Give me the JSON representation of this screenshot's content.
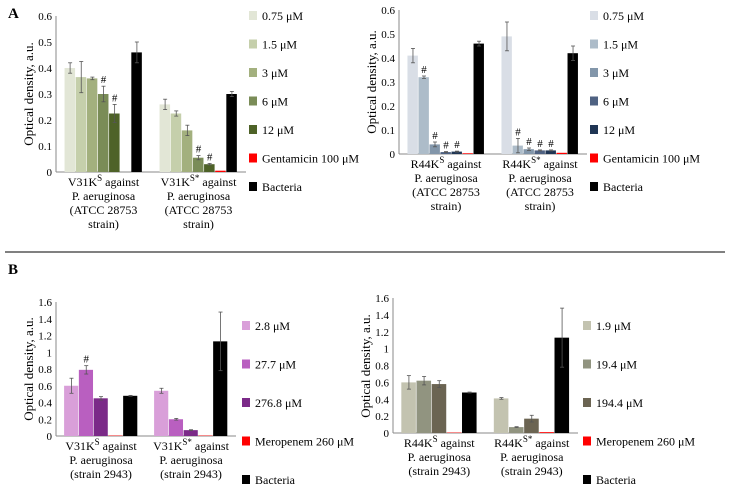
{
  "panels": [
    {
      "letter": "A"
    },
    {
      "letter": "B"
    }
  ],
  "chart_data": [
    {
      "type": "bar",
      "ylabel": "Optical density, a.u.",
      "ylim": [
        0,
        0.6
      ],
      "yticks": [
        "0",
        "0.1",
        "0.2",
        "0.3",
        "0.4",
        "0.5",
        "0.6"
      ],
      "categories": [
        {
          "label": "V31K",
          "sup": "S",
          "lines": [
            "against",
            "P. aeruginosa",
            "(ATCC 28753",
            "strain)"
          ]
        },
        {
          "label": "V31K",
          "sup": "S*",
          "lines": [
            "against",
            "P. aeruginosa",
            "(ATCC 28753",
            "strain)"
          ]
        }
      ],
      "series": [
        {
          "name": "0.75 μM",
          "color": "#e2e6d6",
          "values": [
            0.4,
            0.26
          ],
          "errors": [
            0.02,
            0.02
          ],
          "marks": [
            "",
            ""
          ]
        },
        {
          "name": "1.5 μM",
          "color": "#c5cfab",
          "values": [
            0.365,
            0.225
          ],
          "errors": [
            0.06,
            0.01
          ],
          "marks": [
            "",
            ""
          ]
        },
        {
          "name": "3 μM",
          "color": "#a3b07e",
          "values": [
            0.36,
            0.16
          ],
          "errors": [
            0.005,
            0.02
          ],
          "marks": [
            "",
            ""
          ]
        },
        {
          "name": "6 μM",
          "color": "#7a8c57",
          "values": [
            0.3,
            0.055
          ],
          "errors": [
            0.03,
            0.008
          ],
          "marks": [
            "#",
            "#"
          ]
        },
        {
          "name": "12 μM",
          "color": "#4e6228",
          "values": [
            0.225,
            0.03
          ],
          "errors": [
            0.035,
            0.003
          ],
          "marks": [
            "#",
            "#"
          ]
        },
        {
          "name": "Gentamicin 100 μM",
          "color": "#ff0000",
          "values": [
            0.0,
            0.005
          ],
          "errors": [
            0,
            0
          ],
          "marks": [
            "",
            ""
          ]
        },
        {
          "name": "Bacteria",
          "color": "#000000",
          "values": [
            0.46,
            0.3
          ],
          "errors": [
            0.04,
            0.01
          ],
          "marks": [
            "",
            ""
          ]
        }
      ]
    },
    {
      "type": "bar",
      "ylabel": "Optical density, a.u.",
      "ylim": [
        0,
        0.6
      ],
      "yticks": [
        "0",
        "0.1",
        "0.2",
        "0.3",
        "0.4",
        "0.5",
        "0.6"
      ],
      "categories": [
        {
          "label": "R44K",
          "sup": "S",
          "lines": [
            "against",
            "P. aeruginosa",
            "(ATCC 28753",
            "strain)"
          ]
        },
        {
          "label": "R44K",
          "sup": "S*",
          "lines": [
            "against",
            "P. aeruginosa",
            "(ATCC 28753",
            "strain)"
          ]
        }
      ],
      "series": [
        {
          "name": "0.75 μM",
          "color": "#d9dee6",
          "values": [
            0.41,
            0.49
          ],
          "errors": [
            0.03,
            0.06
          ],
          "marks": [
            "",
            ""
          ]
        },
        {
          "name": "1.5 μM",
          "color": "#adbcc9",
          "values": [
            0.32,
            0.035
          ],
          "errors": [
            0.005,
            0.03
          ],
          "marks": [
            "#",
            "#"
          ]
        },
        {
          "name": "3 μM",
          "color": "#8296aa",
          "values": [
            0.04,
            0.02
          ],
          "errors": [
            0.01,
            0.005
          ],
          "marks": [
            "#",
            "#"
          ]
        },
        {
          "name": "6 μM",
          "color": "#4f6282",
          "values": [
            0.008,
            0.015
          ],
          "errors": [
            0.002,
            0.002
          ],
          "marks": [
            "#",
            "#"
          ]
        },
        {
          "name": "12 μM",
          "color": "#1f3554",
          "values": [
            0.01,
            0.015
          ],
          "errors": [
            0.002,
            0.002
          ],
          "marks": [
            "#",
            "#"
          ]
        },
        {
          "name": "Gentamicin 100 μM",
          "color": "#ff0000",
          "values": [
            0.003,
            0.005
          ],
          "errors": [
            0,
            0
          ],
          "marks": [
            "",
            ""
          ]
        },
        {
          "name": "Bacteria",
          "color": "#000000",
          "values": [
            0.46,
            0.42
          ],
          "errors": [
            0.01,
            0.03
          ],
          "marks": [
            "",
            ""
          ]
        }
      ]
    },
    {
      "type": "bar",
      "ylabel": "Optical density, a.u.",
      "ylim": [
        0,
        1.6
      ],
      "yticks": [
        "0",
        "0.2",
        "0.4",
        "0.6",
        "0.8",
        "1",
        "1.2",
        "1.4",
        "1.6"
      ],
      "categories": [
        {
          "label": "V31K",
          "sup": "S",
          "lines": [
            "against",
            "P. aeruginosa",
            "(strain 2943)"
          ]
        },
        {
          "label": "V31K",
          "sup": "S*",
          "lines": [
            "against",
            "P. aeruginosa",
            "(strain 2943)"
          ]
        }
      ],
      "series": [
        {
          "name": "2.8 μM",
          "color": "#d99fd9",
          "values": [
            0.6,
            0.54
          ],
          "errors": [
            0.09,
            0.03
          ],
          "marks": [
            "",
            ""
          ]
        },
        {
          "name": "27.7 μM",
          "color": "#b95fc0",
          "values": [
            0.79,
            0.2
          ],
          "errors": [
            0.05,
            0.01
          ],
          "marks": [
            "#",
            ""
          ]
        },
        {
          "name": "276.8 μM",
          "color": "#7b2a88",
          "values": [
            0.45,
            0.07
          ],
          "errors": [
            0.02,
            0.005
          ],
          "marks": [
            "",
            ""
          ]
        },
        {
          "name": "Meropenem 260 μM",
          "color": "#ff0000",
          "values": [
            0.005,
            0.005
          ],
          "errors": [
            0,
            0
          ],
          "marks": [
            "",
            ""
          ]
        },
        {
          "name": "Bacteria",
          "color": "#000000",
          "values": [
            0.48,
            1.13
          ],
          "errors": [
            0.005,
            0.35
          ],
          "marks": [
            "",
            ""
          ]
        }
      ]
    },
    {
      "type": "bar",
      "ylabel": "Optical density, a.u.",
      "ylim": [
        0,
        1.6
      ],
      "yticks": [
        "0",
        "0.2",
        "0.4",
        "0.6",
        "0.8",
        "1",
        "1.2",
        "1.4",
        "1.6"
      ],
      "categories": [
        {
          "label": "R44K",
          "sup": "S",
          "lines": [
            "against",
            "P. aeruginosa",
            "(strain 2943)"
          ]
        },
        {
          "label": "R44K",
          "sup": "S*",
          "lines": [
            "against",
            "P. aeruginosa",
            "(strain 2943)"
          ]
        }
      ],
      "series": [
        {
          "name": "1.9 μM",
          "color": "#c3c3b0",
          "values": [
            0.6,
            0.41
          ],
          "errors": [
            0.08,
            0.01
          ],
          "marks": [
            "",
            ""
          ]
        },
        {
          "name": "19.4 μM",
          "color": "#919480",
          "values": [
            0.62,
            0.07
          ],
          "errors": [
            0.05,
            0.005
          ],
          "marks": [
            "",
            ""
          ]
        },
        {
          "name": "194.4 μM",
          "color": "#6b6452",
          "values": [
            0.58,
            0.17
          ],
          "errors": [
            0.04,
            0.04
          ],
          "marks": [
            "",
            ""
          ]
        },
        {
          "name": "Meropenem 260 μM",
          "color": "#ff0000",
          "values": [
            0.005,
            0.01
          ],
          "errors": [
            0,
            0
          ],
          "marks": [
            "",
            ""
          ]
        },
        {
          "name": "Bacteria",
          "color": "#000000",
          "values": [
            0.48,
            1.13
          ],
          "errors": [
            0.005,
            0.35
          ],
          "marks": [
            "",
            ""
          ]
        }
      ]
    }
  ]
}
